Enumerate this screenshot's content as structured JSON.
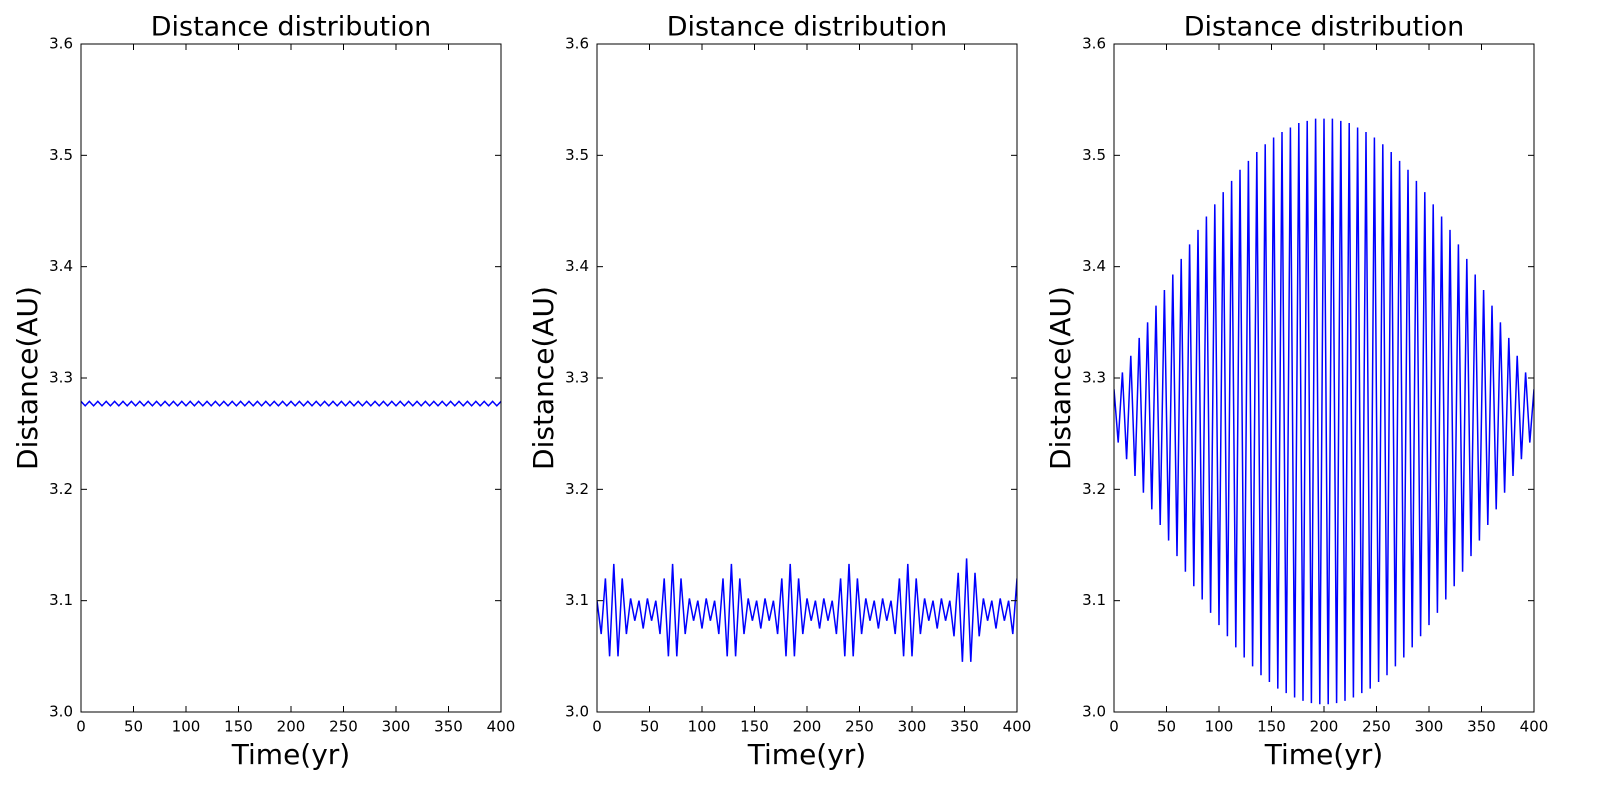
{
  "chart_data": [
    {
      "type": "line",
      "title": "Distance distribution",
      "xlabel": "Time(yr)",
      "ylabel": "Distance(AU)",
      "color": "#0000ff",
      "xlim": [
        0,
        400
      ],
      "xticks": [
        0,
        50,
        100,
        150,
        200,
        250,
        300,
        350,
        400
      ],
      "ylim": [
        3.0,
        3.6
      ],
      "yticks": [
        {
          "value": 3,
          "label": "3.0"
        },
        3.1,
        3.2,
        3.3,
        3.4,
        3.5,
        3.6
      ],
      "x": [
        0,
        4,
        8,
        12,
        16,
        20,
        24,
        28,
        32,
        36,
        40,
        44,
        48,
        52,
        56,
        60,
        64,
        68,
        72,
        76,
        80,
        84,
        88,
        92,
        96,
        100,
        104,
        108,
        112,
        116,
        120,
        124,
        128,
        132,
        136,
        140,
        144,
        148,
        152,
        156,
        160,
        164,
        168,
        172,
        176,
        180,
        184,
        188,
        192,
        196,
        200,
        204,
        208,
        212,
        216,
        220,
        224,
        228,
        232,
        236,
        240,
        244,
        248,
        252,
        256,
        260,
        264,
        268,
        272,
        276,
        280,
        284,
        288,
        292,
        296,
        300,
        304,
        308,
        312,
        316,
        320,
        324,
        328,
        332,
        336,
        340,
        344,
        348,
        352,
        356,
        360,
        364,
        368,
        372,
        376,
        380,
        384,
        388,
        392,
        396,
        400
      ],
      "values": [
        3.279,
        3.275,
        3.279,
        3.275,
        3.279,
        3.275,
        3.279,
        3.275,
        3.279,
        3.275,
        3.279,
        3.275,
        3.279,
        3.275,
        3.279,
        3.275,
        3.279,
        3.275,
        3.279,
        3.275,
        3.279,
        3.275,
        3.279,
        3.275,
        3.279,
        3.275,
        3.279,
        3.275,
        3.279,
        3.275,
        3.279,
        3.275,
        3.279,
        3.275,
        3.279,
        3.275,
        3.279,
        3.275,
        3.279,
        3.275,
        3.279,
        3.275,
        3.279,
        3.275,
        3.279,
        3.275,
        3.279,
        3.275,
        3.279,
        3.275,
        3.279,
        3.275,
        3.279,
        3.275,
        3.279,
        3.275,
        3.279,
        3.275,
        3.279,
        3.275,
        3.279,
        3.275,
        3.279,
        3.275,
        3.279,
        3.275,
        3.279,
        3.275,
        3.279,
        3.275,
        3.279,
        3.275,
        3.279,
        3.275,
        3.279,
        3.275,
        3.279,
        3.275,
        3.279,
        3.275,
        3.279,
        3.275,
        3.279,
        3.275,
        3.279,
        3.275,
        3.279,
        3.275,
        3.279,
        3.275,
        3.279,
        3.275,
        3.279,
        3.275,
        3.279,
        3.275,
        3.279,
        3.275,
        3.279,
        3.275,
        3.279
      ]
    },
    {
      "type": "line",
      "title": "Distance distribution",
      "xlabel": "Time(yr)",
      "ylabel": "Distance(AU)",
      "color": "#0000ff",
      "xlim": [
        0,
        400
      ],
      "xticks": [
        0,
        50,
        100,
        150,
        200,
        250,
        300,
        350,
        400
      ],
      "ylim": [
        3.0,
        3.6
      ],
      "yticks": [
        {
          "value": 3,
          "label": "3.0"
        },
        3.1,
        3.2,
        3.3,
        3.4,
        3.5,
        3.6
      ],
      "x": [
        0,
        4,
        8,
        12,
        16,
        20,
        24,
        28,
        32,
        36,
        40,
        44,
        48,
        52,
        56,
        60,
        64,
        68,
        72,
        76,
        80,
        84,
        88,
        92,
        96,
        100,
        104,
        108,
        112,
        116,
        120,
        124,
        128,
        132,
        136,
        140,
        144,
        148,
        152,
        156,
        160,
        164,
        168,
        172,
        176,
        180,
        184,
        188,
        192,
        196,
        200,
        204,
        208,
        212,
        216,
        220,
        224,
        228,
        232,
        236,
        240,
        244,
        248,
        252,
        256,
        260,
        264,
        268,
        272,
        276,
        280,
        284,
        288,
        292,
        296,
        300,
        304,
        308,
        312,
        316,
        320,
        324,
        328,
        332,
        336,
        340,
        344,
        348,
        352,
        356,
        360,
        364,
        368,
        372,
        376,
        380,
        384,
        388,
        392,
        396,
        400
      ],
      "values": [
        3.1,
        3.07,
        3.12,
        3.05,
        3.133,
        3.05,
        3.12,
        3.07,
        3.102,
        3.082,
        3.1,
        3.075,
        3.102,
        3.082,
        3.1,
        3.07,
        3.12,
        3.05,
        3.133,
        3.05,
        3.12,
        3.07,
        3.102,
        3.082,
        3.1,
        3.075,
        3.102,
        3.082,
        3.1,
        3.07,
        3.12,
        3.05,
        3.133,
        3.05,
        3.12,
        3.07,
        3.102,
        3.082,
        3.1,
        3.075,
        3.102,
        3.082,
        3.1,
        3.07,
        3.12,
        3.05,
        3.133,
        3.05,
        3.12,
        3.07,
        3.102,
        3.082,
        3.1,
        3.075,
        3.102,
        3.082,
        3.1,
        3.07,
        3.12,
        3.05,
        3.133,
        3.05,
        3.12,
        3.07,
        3.102,
        3.082,
        3.1,
        3.075,
        3.102,
        3.082,
        3.1,
        3.07,
        3.12,
        3.05,
        3.133,
        3.05,
        3.12,
        3.07,
        3.102,
        3.082,
        3.1,
        3.075,
        3.102,
        3.082,
        3.1,
        3.068,
        3.125,
        3.045,
        3.138,
        3.045,
        3.125,
        3.068,
        3.102,
        3.082,
        3.1,
        3.075,
        3.102,
        3.082,
        3.1,
        3.07,
        3.12
      ]
    },
    {
      "type": "line",
      "title": "Distance distribution",
      "xlabel": "Time(yr)",
      "ylabel": "Distance(AU)",
      "color": "#0000ff",
      "xlim": [
        0,
        400
      ],
      "xticks": [
        0,
        50,
        100,
        150,
        200,
        250,
        300,
        350,
        400
      ],
      "ylim": [
        3.0,
        3.6
      ],
      "yticks": [
        {
          "value": 3,
          "label": "3.0"
        },
        3.1,
        3.2,
        3.3,
        3.4,
        3.5,
        3.6
      ],
      "x": [
        0,
        4,
        8,
        12,
        16,
        20,
        24,
        28,
        32,
        36,
        40,
        44,
        48,
        52,
        56,
        60,
        64,
        68,
        72,
        76,
        80,
        84,
        88,
        92,
        96,
        100,
        104,
        108,
        112,
        116,
        120,
        124,
        128,
        132,
        136,
        140,
        144,
        148,
        152,
        156,
        160,
        164,
        168,
        172,
        176,
        180,
        184,
        188,
        192,
        196,
        200,
        204,
        208,
        212,
        216,
        220,
        224,
        228,
        232,
        236,
        240,
        244,
        248,
        252,
        256,
        260,
        264,
        268,
        272,
        276,
        280,
        284,
        288,
        292,
        296,
        300,
        304,
        308,
        312,
        316,
        320,
        324,
        328,
        332,
        336,
        340,
        344,
        348,
        352,
        356,
        360,
        364,
        368,
        372,
        376,
        380,
        384,
        388,
        392,
        396,
        400
      ],
      "values": [
        3.29,
        3.242,
        3.305,
        3.227,
        3.32,
        3.212,
        3.336,
        3.197,
        3.35,
        3.182,
        3.365,
        3.168,
        3.379,
        3.154,
        3.393,
        3.14,
        3.407,
        3.126,
        3.42,
        3.113,
        3.433,
        3.101,
        3.445,
        3.089,
        3.456,
        3.078,
        3.467,
        3.068,
        3.477,
        3.058,
        3.487,
        3.049,
        3.495,
        3.041,
        3.503,
        3.033,
        3.51,
        3.027,
        3.516,
        3.021,
        3.521,
        3.017,
        3.525,
        3.013,
        3.529,
        3.01,
        3.531,
        3.008,
        3.533,
        3.007,
        3.533,
        3.007,
        3.533,
        3.008,
        3.531,
        3.01,
        3.529,
        3.013,
        3.525,
        3.017,
        3.521,
        3.021,
        3.516,
        3.027,
        3.51,
        3.033,
        3.503,
        3.041,
        3.495,
        3.049,
        3.487,
        3.058,
        3.477,
        3.068,
        3.467,
        3.078,
        3.456,
        3.089,
        3.445,
        3.101,
        3.433,
        3.113,
        3.42,
        3.126,
        3.407,
        3.14,
        3.393,
        3.154,
        3.379,
        3.168,
        3.365,
        3.182,
        3.35,
        3.197,
        3.336,
        3.212,
        3.32,
        3.227,
        3.305,
        3.242,
        3.29
      ]
    }
  ]
}
